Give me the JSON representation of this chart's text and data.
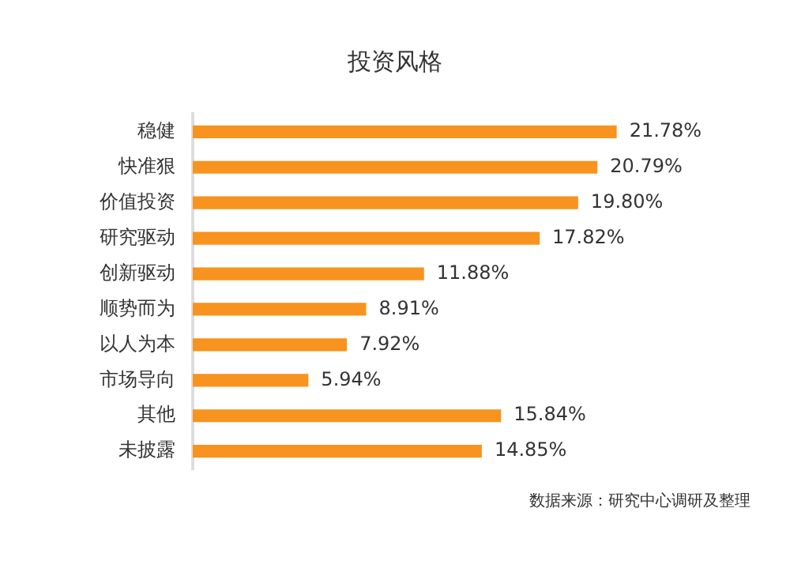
{
  "chart_data": {
    "type": "bar",
    "orientation": "horizontal",
    "title": "投资风格",
    "categories": [
      "稳健",
      "快准狠",
      "价值投资",
      "研究驱动",
      "创新驱动",
      "顺势而为",
      "以人为本",
      "市场导向",
      "其他",
      "未披露"
    ],
    "values": [
      21.78,
      20.79,
      19.8,
      17.82,
      11.88,
      8.91,
      7.92,
      5.94,
      15.84,
      14.85
    ],
    "value_labels": [
      "21.78%",
      "20.79%",
      "19.80%",
      "17.82%",
      "11.88%",
      "8.91%",
      "7.92%",
      "5.94%",
      "15.84%",
      "14.85%"
    ],
    "color": "#f7931e",
    "legend": false,
    "annotations": [
      "数据来源：研究中心调研及整理"
    ]
  }
}
